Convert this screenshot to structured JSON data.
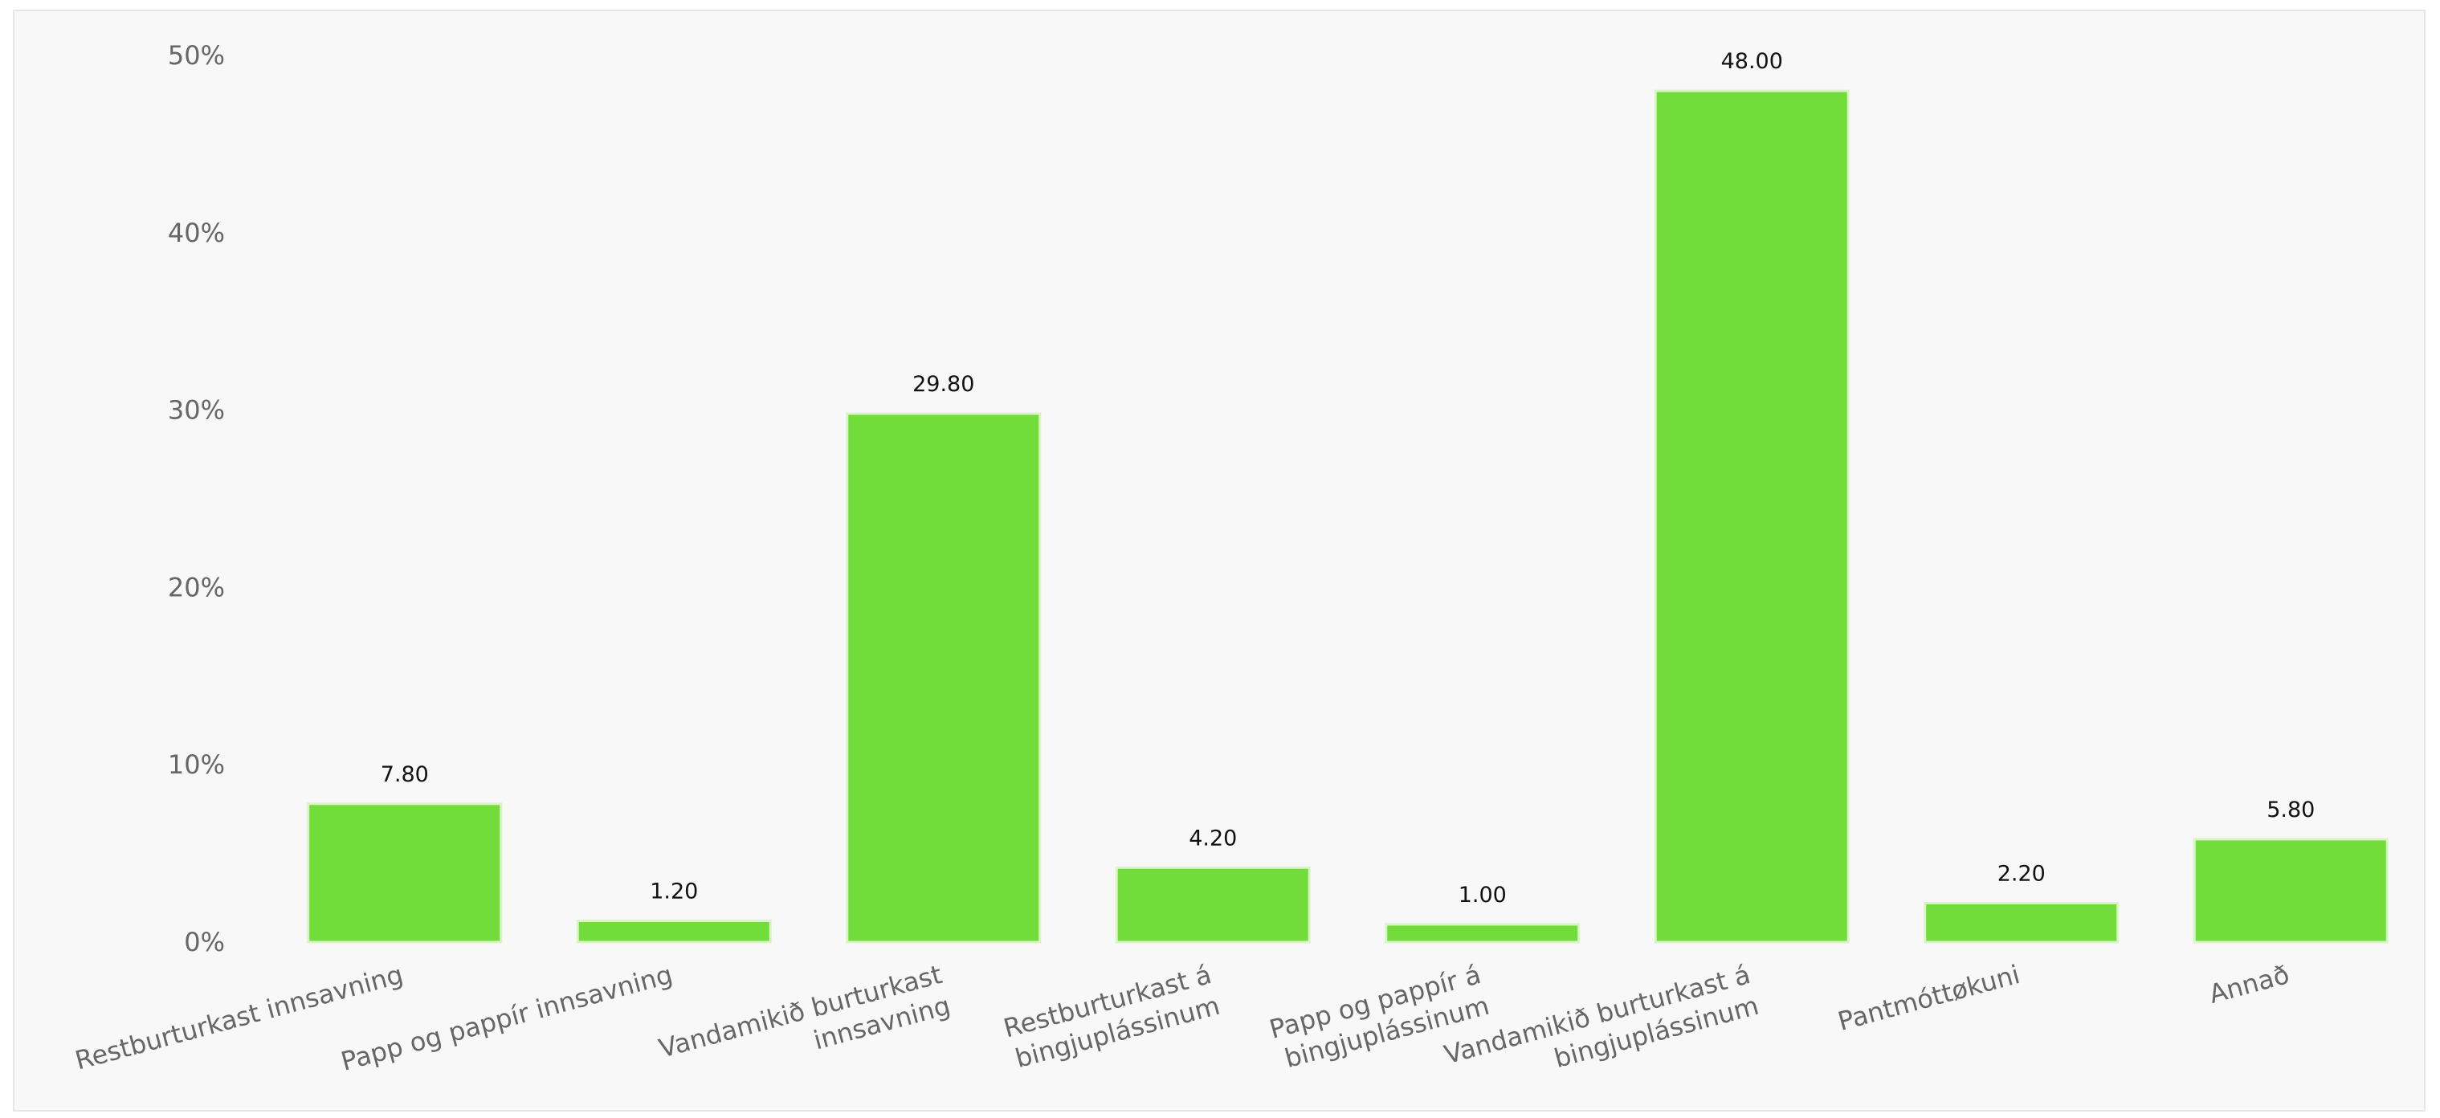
{
  "chart_data": {
    "type": "bar",
    "title": "",
    "xlabel": "",
    "ylabel": "",
    "ylim": [
      0,
      50
    ],
    "y_ticks": [
      0,
      10,
      20,
      30,
      40,
      50
    ],
    "y_tick_labels": [
      "0%",
      "10%",
      "20%",
      "30%",
      "40%",
      "50%"
    ],
    "grid": false,
    "legend": "none",
    "bar_color": "#72dc3a",
    "bar_edge_color": "#d9f5c8",
    "categories": [
      [
        "Restburturkast innsavning"
      ],
      [
        "Papp og pappír innsavning"
      ],
      [
        "Vandamikið burturkast",
        "innsavning"
      ],
      [
        "Restburturkast á",
        "bingjuplássinum"
      ],
      [
        "Papp og pappír á",
        "bingjuplássinum"
      ],
      [
        "Vandamikið burturkast á",
        "bingjuplássinum"
      ],
      [
        "Pantmóttøkuni"
      ],
      [
        "Annað"
      ]
    ],
    "values": [
      7.8,
      1.2,
      29.8,
      4.2,
      1.0,
      48.0,
      2.2,
      5.8
    ],
    "value_labels": [
      "7.80",
      "1.20",
      "29.80",
      "4.20",
      "1.00",
      "48.00",
      "2.20",
      "5.80"
    ]
  }
}
